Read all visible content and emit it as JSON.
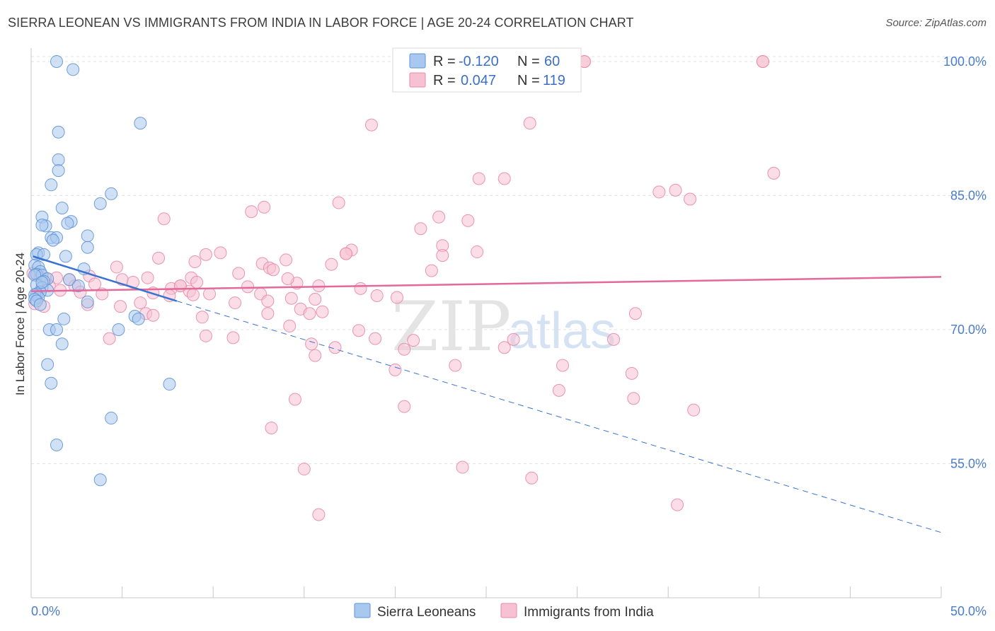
{
  "title": "SIERRA LEONEAN VS IMMIGRANTS FROM INDIA IN LABOR FORCE | AGE 20-24 CORRELATION CHART",
  "source": "Source: ZipAtlas.com",
  "watermark": {
    "zip": "ZIP",
    "atlas": "atlas"
  },
  "colors": {
    "blue_fill": "#a9c8ef",
    "blue_stroke": "#5f93d6",
    "blue_line": "#3a72cf",
    "pink_fill": "#f6c1d2",
    "pink_stroke": "#e88aa8",
    "pink_line": "#e2699a",
    "tick_label": "#4a7cc9",
    "grid": "#e3e3e3"
  },
  "legend_top": {
    "rows": [
      {
        "r_label": "R =",
        "r_value": "-0.120",
        "n_label": "N =",
        "n_value": "60"
      },
      {
        "r_label": "R =",
        "r_value": "0.047",
        "n_label": "N =",
        "n_value": "119"
      }
    ]
  },
  "legend_bottom": [
    "Sierra Leoneans",
    "Immigrants from India"
  ],
  "chart_data": {
    "type": "scatter",
    "title": "SIERRA LEONEAN VS IMMIGRANTS FROM INDIA IN LABOR FORCE | AGE 20-24 CORRELATION CHART",
    "xlabel": "",
    "ylabel": "In Labor Force | Age 20-24",
    "xlim": [
      0,
      50
    ],
    "ylim": [
      40,
      101.5
    ],
    "x_tick_labels": [
      "0.0%",
      "50.0%"
    ],
    "y_ticks": [
      55,
      70,
      85,
      100
    ],
    "y_tick_labels": [
      "55.0%",
      "70.0%",
      "85.0%",
      "100.0%"
    ],
    "grid": true,
    "series": [
      {
        "name": "Sierra Leoneans",
        "R": -0.12,
        "N": 60,
        "trend": {
          "x": [
            0.1,
            8.0
          ],
          "y": [
            78.2,
            73.2
          ]
        },
        "trend_extension": {
          "x": [
            8.0,
            50.0
          ],
          "y": [
            73.2,
            47.3
          ]
        },
        "points": [
          [
            1.4,
            100.0
          ],
          [
            2.3,
            99.1
          ],
          [
            6.0,
            93.1
          ],
          [
            1.5,
            92.1
          ],
          [
            1.5,
            89.0
          ],
          [
            1.5,
            87.8
          ],
          [
            1.1,
            86.2
          ],
          [
            4.4,
            85.2
          ],
          [
            3.8,
            84.1
          ],
          [
            1.7,
            83.6
          ],
          [
            0.6,
            82.6
          ],
          [
            2.2,
            82.1
          ],
          [
            0.8,
            81.6
          ],
          [
            0.6,
            81.7
          ],
          [
            2.0,
            81.9
          ],
          [
            3.1,
            80.5
          ],
          [
            1.1,
            80.3
          ],
          [
            1.4,
            80.3
          ],
          [
            1.2,
            80.0
          ],
          [
            3.1,
            79.2
          ],
          [
            0.4,
            78.6
          ],
          [
            0.3,
            78.4
          ],
          [
            0.7,
            78.4
          ],
          [
            1.9,
            78.2
          ],
          [
            0.2,
            77.2
          ],
          [
            0.4,
            77.0
          ],
          [
            2.9,
            76.8
          ],
          [
            0.5,
            76.5
          ],
          [
            0.3,
            76.2
          ],
          [
            0.6,
            76.1
          ],
          [
            0.2,
            76.1
          ],
          [
            0.9,
            75.7
          ],
          [
            2.1,
            75.6
          ],
          [
            0.7,
            75.4
          ],
          [
            0.3,
            75.0
          ],
          [
            2.6,
            74.9
          ],
          [
            0.6,
            74.7
          ],
          [
            0.9,
            74.4
          ],
          [
            0.5,
            74.2
          ],
          [
            0.3,
            74.0
          ],
          [
            0.2,
            73.9
          ],
          [
            0.4,
            73.6
          ],
          [
            0.2,
            73.4
          ],
          [
            0.3,
            73.2
          ],
          [
            0.5,
            72.8
          ],
          [
            3.1,
            73.1
          ],
          [
            5.7,
            71.5
          ],
          [
            1.8,
            71.2
          ],
          [
            5.9,
            71.2
          ],
          [
            1.0,
            70.0
          ],
          [
            1.4,
            70.0
          ],
          [
            4.8,
            70.0
          ],
          [
            1.7,
            68.4
          ],
          [
            0.9,
            66.1
          ],
          [
            1.1,
            64.0
          ],
          [
            7.6,
            63.9
          ],
          [
            4.4,
            60.1
          ],
          [
            1.4,
            57.1
          ],
          [
            3.8,
            53.2
          ],
          [
            0.6,
            75.3
          ]
        ]
      },
      {
        "name": "Immigrants from India",
        "R": 0.047,
        "N": 119,
        "trend": {
          "x": [
            0.0,
            50.0
          ],
          "y": [
            74.3,
            75.9
          ]
        },
        "points": [
          [
            20.5,
            100.0
          ],
          [
            30.4,
            100.0
          ],
          [
            40.2,
            100.0
          ],
          [
            18.7,
            92.9
          ],
          [
            27.4,
            93.1
          ],
          [
            40.8,
            87.5
          ],
          [
            24.6,
            86.9
          ],
          [
            35.4,
            85.6
          ],
          [
            34.5,
            85.4
          ],
          [
            36.2,
            84.6
          ],
          [
            16.9,
            84.2
          ],
          [
            12.1,
            83.2
          ],
          [
            12.8,
            83.7
          ],
          [
            7.3,
            82.4
          ],
          [
            22.4,
            82.6
          ],
          [
            24.0,
            82.2
          ],
          [
            21.4,
            81.3
          ],
          [
            22.6,
            79.4
          ],
          [
            17.6,
            78.9
          ],
          [
            22.6,
            78.3
          ],
          [
            24.5,
            78.7
          ],
          [
            9.6,
            78.4
          ],
          [
            17.3,
            78.5
          ],
          [
            7.0,
            78.0
          ],
          [
            10.4,
            78.6
          ],
          [
            12.7,
            77.4
          ],
          [
            9.0,
            77.6
          ],
          [
            14.0,
            77.8
          ],
          [
            16.5,
            77.3
          ],
          [
            13.1,
            76.9
          ],
          [
            4.7,
            77.0
          ],
          [
            0.1,
            76.3
          ],
          [
            0.3,
            76.1
          ],
          [
            0.5,
            75.9
          ],
          [
            0.8,
            75.7
          ],
          [
            13.3,
            76.7
          ],
          [
            22.0,
            76.6
          ],
          [
            11.4,
            76.3
          ],
          [
            8.8,
            75.8
          ],
          [
            1.4,
            75.8
          ],
          [
            2.1,
            75.6
          ],
          [
            3.2,
            76.0
          ],
          [
            6.4,
            75.8
          ],
          [
            5.0,
            75.6
          ],
          [
            5.6,
            75.3
          ],
          [
            3.5,
            75.1
          ],
          [
            2.4,
            74.9
          ],
          [
            1.0,
            74.9
          ],
          [
            8.2,
            74.9
          ],
          [
            8.7,
            74.3
          ],
          [
            9.1,
            75.3
          ],
          [
            1.6,
            74.4
          ],
          [
            14.6,
            75.2
          ],
          [
            15.8,
            74.9
          ],
          [
            14.1,
            75.7
          ],
          [
            18.1,
            74.6
          ],
          [
            11.9,
            74.8
          ],
          [
            7.7,
            74.6
          ],
          [
            3.9,
            74.0
          ],
          [
            2.7,
            74.2
          ],
          [
            12.6,
            74.0
          ],
          [
            9.8,
            74.0
          ],
          [
            6.7,
            74.1
          ],
          [
            8.9,
            73.9
          ],
          [
            7.6,
            73.8
          ],
          [
            14.3,
            73.5
          ],
          [
            15.6,
            73.4
          ],
          [
            19.0,
            73.8
          ],
          [
            20.1,
            73.6
          ],
          [
            11.2,
            73.0
          ],
          [
            13.0,
            73.2
          ],
          [
            6.0,
            73.0
          ],
          [
            3.1,
            72.8
          ],
          [
            4.9,
            72.6
          ],
          [
            0.2,
            72.9
          ],
          [
            0.7,
            72.6
          ],
          [
            14.8,
            72.3
          ],
          [
            15.3,
            71.8
          ],
          [
            16.0,
            72.0
          ],
          [
            13.0,
            71.8
          ],
          [
            6.3,
            71.8
          ],
          [
            6.7,
            71.6
          ],
          [
            9.4,
            71.4
          ],
          [
            33.2,
            71.8
          ],
          [
            14.2,
            70.4
          ],
          [
            18.0,
            69.9
          ],
          [
            4.3,
            69.0
          ],
          [
            9.6,
            69.3
          ],
          [
            11.1,
            69.1
          ],
          [
            18.9,
            69.0
          ],
          [
            21.0,
            68.8
          ],
          [
            26.5,
            68.9
          ],
          [
            32.0,
            68.9
          ],
          [
            15.4,
            68.4
          ],
          [
            16.7,
            68.0
          ],
          [
            20.5,
            67.8
          ],
          [
            26.0,
            68.0
          ],
          [
            15.6,
            67.1
          ],
          [
            23.3,
            66.0
          ],
          [
            29.2,
            66.0
          ],
          [
            20.0,
            65.5
          ],
          [
            33.0,
            65.1
          ],
          [
            29.0,
            63.2
          ],
          [
            33.1,
            62.3
          ],
          [
            14.5,
            62.2
          ],
          [
            20.5,
            61.4
          ],
          [
            36.4,
            61.0
          ],
          [
            13.2,
            59.0
          ],
          [
            15.0,
            54.4
          ],
          [
            23.7,
            54.6
          ],
          [
            27.5,
            53.4
          ],
          [
            35.5,
            50.4
          ],
          [
            15.8,
            49.3
          ],
          [
            20.6,
            100.0
          ],
          [
            40.2,
            100.0
          ],
          [
            26.0,
            86.9
          ],
          [
            30.4,
            100.0
          ],
          [
            17.3,
            78.5
          ],
          [
            8.2,
            74.9
          ]
        ]
      }
    ]
  }
}
